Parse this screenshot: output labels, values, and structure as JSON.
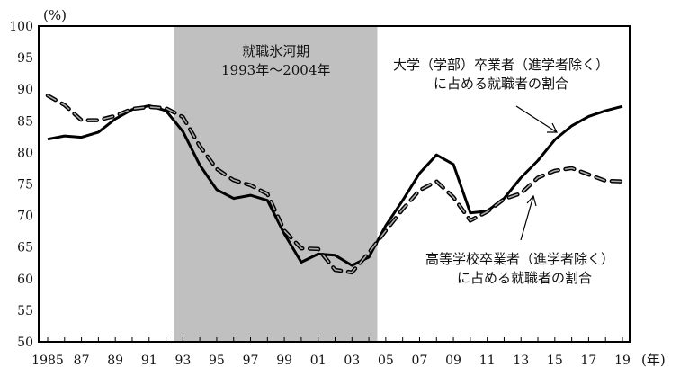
{
  "chart_data": {
    "type": "line",
    "y_unit_label": "(%)",
    "x_unit_label": "(年)",
    "ylim": [
      50,
      100
    ],
    "yticks": [
      50,
      55,
      60,
      65,
      70,
      75,
      80,
      85,
      90,
      95,
      100
    ],
    "xlim": [
      1985,
      2019
    ],
    "xtick_years": [
      1985,
      1987,
      1989,
      1991,
      1993,
      1995,
      1997,
      1999,
      2001,
      2003,
      2005,
      2007,
      2009,
      2011,
      2013,
      2015,
      2017,
      2019
    ],
    "xtick_labels": [
      "1985",
      "87",
      "89",
      "91",
      "93",
      "95",
      "97",
      "99",
      "01",
      "03",
      "05",
      "07",
      "09",
      "11",
      "13",
      "15",
      "17",
      "19"
    ],
    "x": [
      1985,
      1986,
      1987,
      1988,
      1989,
      1990,
      1991,
      1992,
      1993,
      1994,
      1995,
      1996,
      1997,
      1998,
      1999,
      2000,
      2001,
      2002,
      2003,
      2004,
      2005,
      2006,
      2007,
      2008,
      2009,
      2010,
      2011,
      2012,
      2013,
      2014,
      2015,
      2016,
      2017,
      2018,
      2019
    ],
    "shaded_period": {
      "from": 1992.5,
      "to": 2004.5,
      "color": "#c0c0c0",
      "title": "就職氷河期",
      "subtitle": "1993年～2004年"
    },
    "series": [
      {
        "name": "大学（学部）卒業者（進学者除く）に占める就職者の割合",
        "label_line1": "大学（学部）卒業者（進学者除く）",
        "label_line2": "に占める就職者の割合",
        "style": "solid",
        "values": [
          82.1,
          82.6,
          82.4,
          83.2,
          85.3,
          86.8,
          87.4,
          86.6,
          83.3,
          78.0,
          74.1,
          72.7,
          73.2,
          72.4,
          67.1,
          62.6,
          63.9,
          63.7,
          62.1,
          63.4,
          68.4,
          72.4,
          76.7,
          79.6,
          78.1,
          70.4,
          70.7,
          72.7,
          76.0,
          78.7,
          82.0,
          84.2,
          85.7,
          86.6,
          87.3
        ]
      },
      {
        "name": "高等学校卒業者（進学者除く）に占める就職者の割合",
        "label_line1": "高等学校卒業者（進学者除く）",
        "label_line2": "に占める就職者の割合",
        "style": "dashed",
        "values": [
          89.0,
          87.5,
          85.1,
          85.1,
          85.8,
          86.9,
          87.2,
          87.0,
          85.6,
          81.0,
          77.4,
          75.6,
          74.8,
          73.4,
          67.6,
          64.8,
          64.7,
          61.4,
          61.0,
          64.1,
          67.6,
          71.0,
          74.0,
          75.4,
          72.9,
          69.2,
          70.6,
          72.6,
          73.5,
          76.0,
          77.1,
          77.5,
          76.5,
          75.5,
          75.4
        ]
      }
    ]
  }
}
